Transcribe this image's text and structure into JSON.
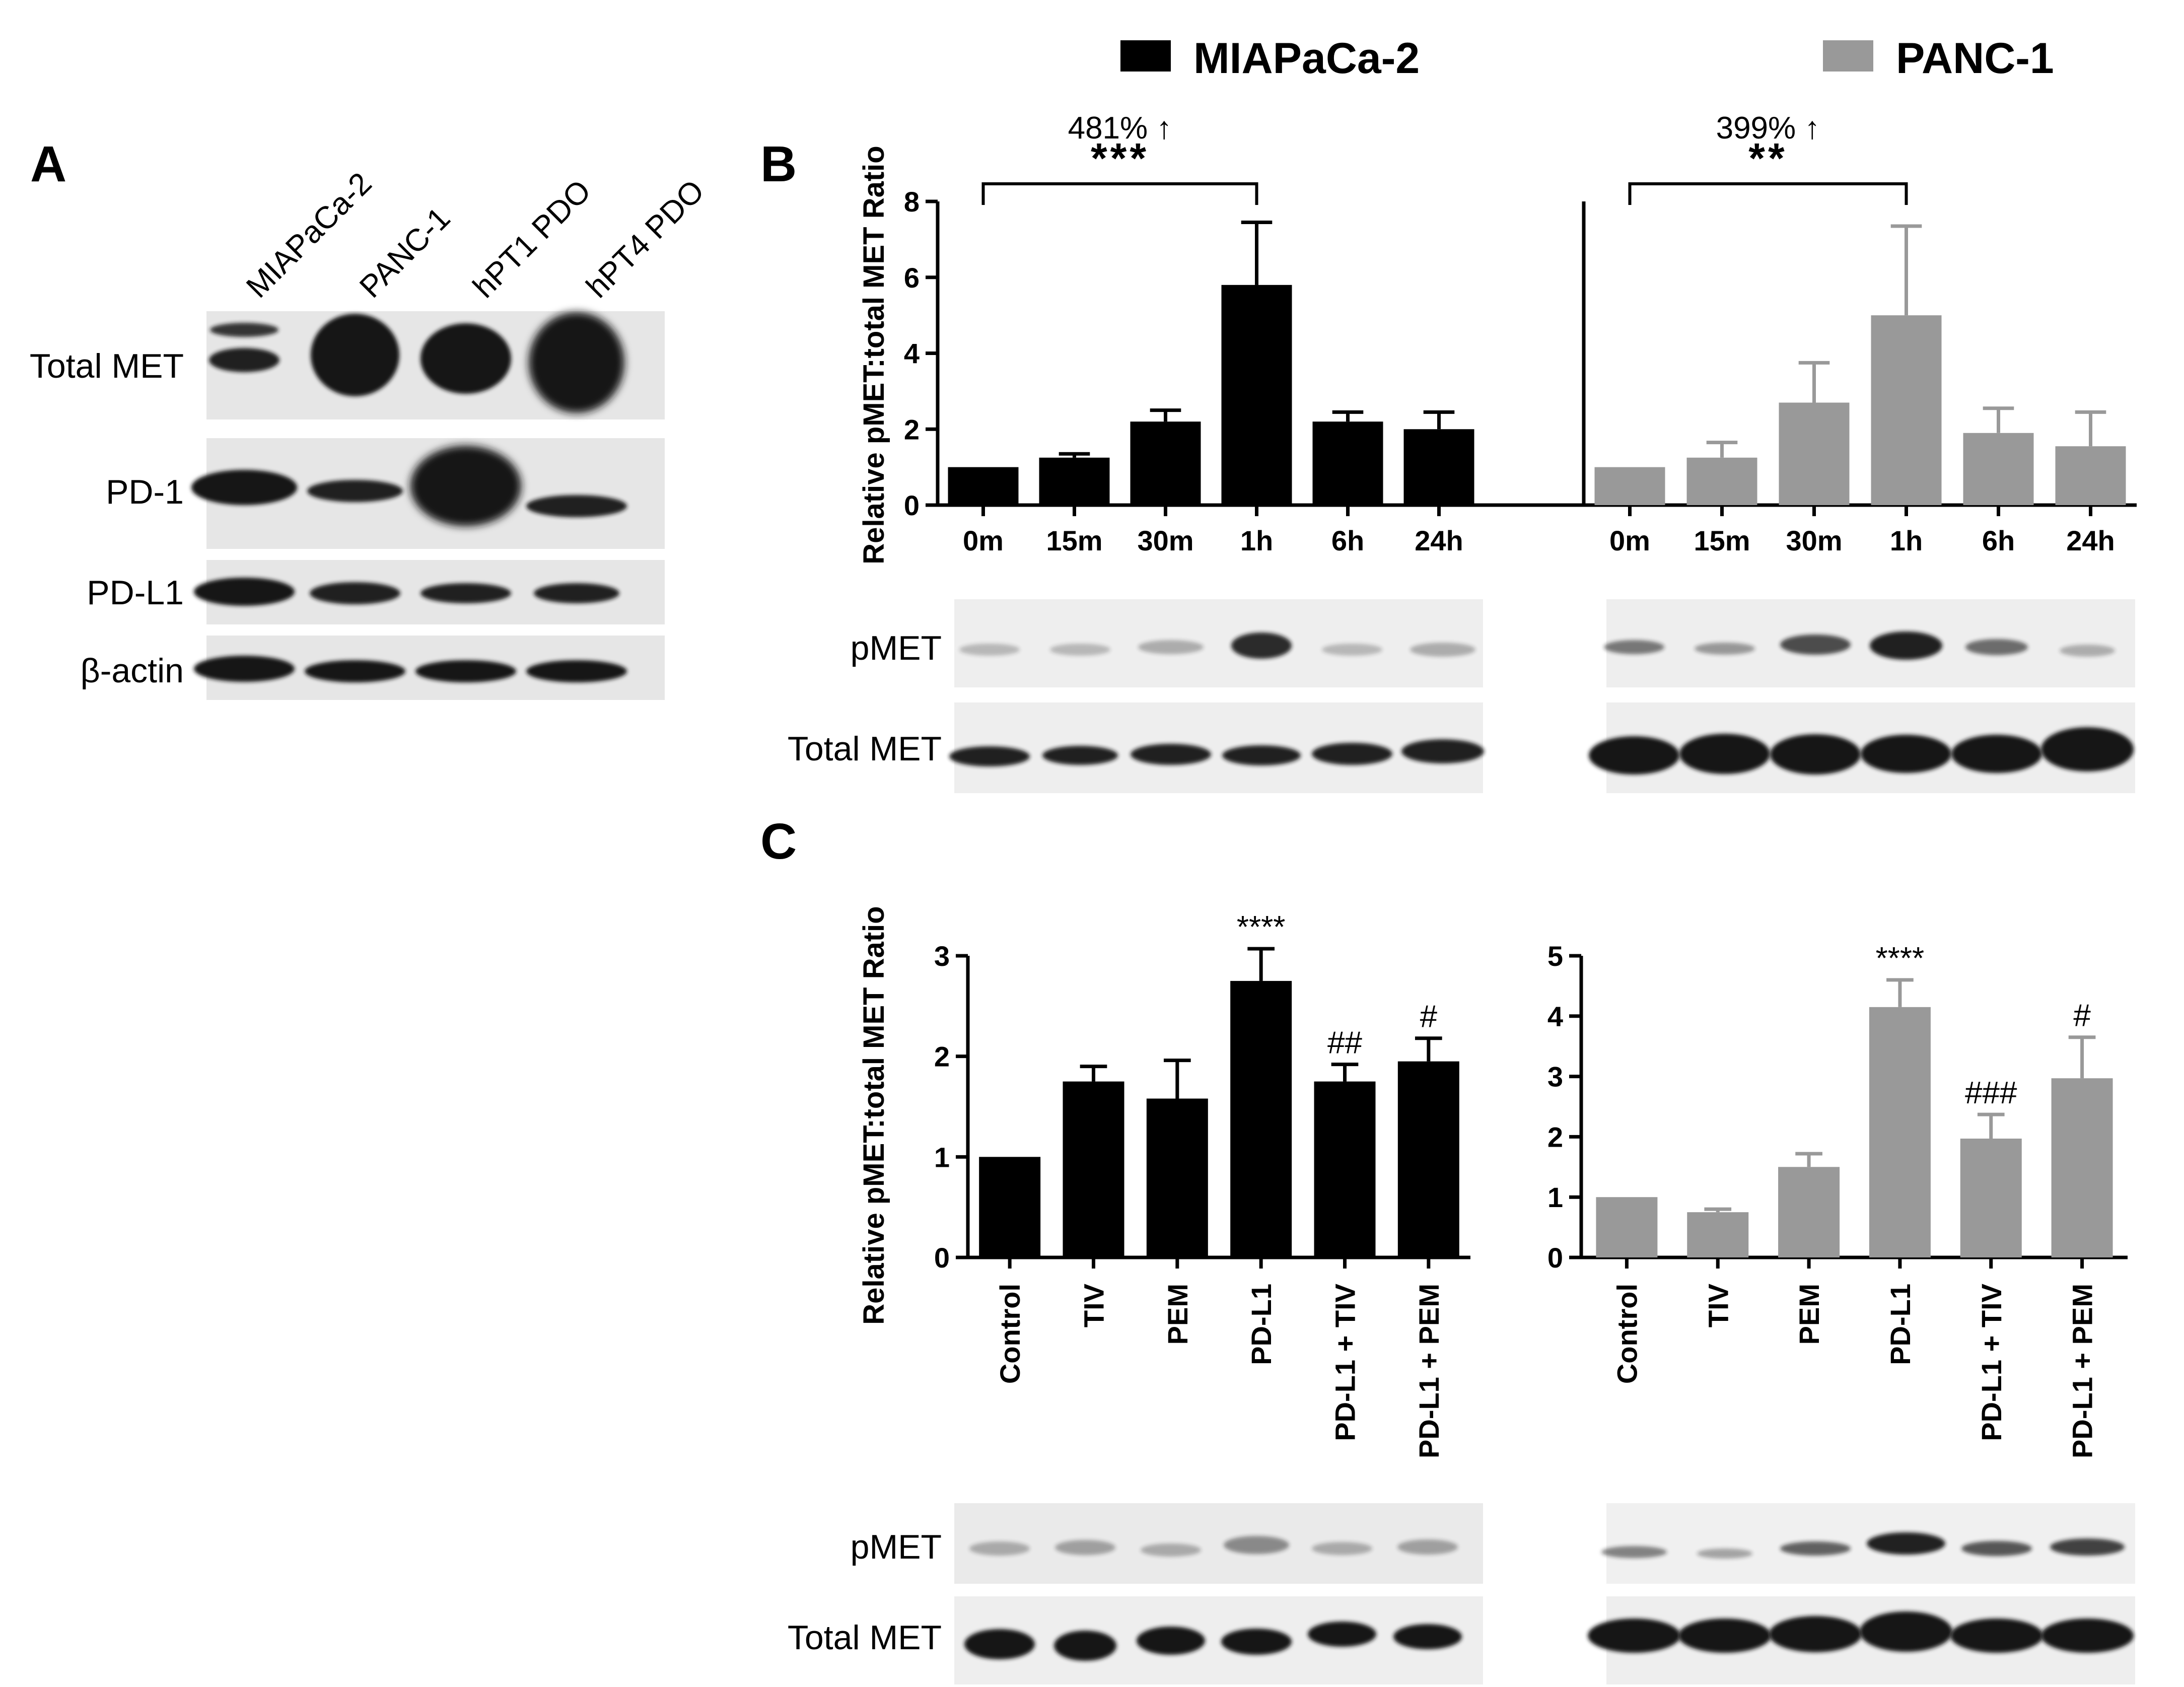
{
  "colors": {
    "miapaca": "#000000",
    "panc": "#999999",
    "blot_bg": "#e6e6e6",
    "band": "#141414"
  },
  "legend": [
    {
      "name": "MIAPaCa-2",
      "color": "#000000"
    },
    {
      "name": "PANC-1",
      "color": "#999999"
    }
  ],
  "panelA": {
    "letter": "A",
    "lanes": [
      "MIAPaCa-2",
      "PANC-1",
      "hPT1 PDO",
      "hPT4 PDO"
    ],
    "rows": [
      "Total MET",
      "PD-1",
      "PD-L1",
      "β-actin"
    ]
  },
  "panelB": {
    "letter": "B",
    "blot_rows": [
      "pMET",
      "Total MET"
    ]
  },
  "panelC": {
    "letter": "C",
    "blot_rows": [
      "pMET",
      "Total MET"
    ]
  },
  "chart_data": [
    {
      "type": "bar",
      "panel": "B",
      "series_name": "MIAPaCa-2",
      "categories": [
        "0m",
        "15m",
        "30m",
        "1h",
        "6h",
        "24h"
      ],
      "values": [
        1.0,
        1.25,
        2.2,
        5.8,
        2.2,
        2.0
      ],
      "errors": [
        0.0,
        0.1,
        0.3,
        1.65,
        0.25,
        0.45
      ],
      "ylabel": "Relative pMET:total MET Ratio",
      "ylim": [
        0,
        8
      ],
      "yticks": [
        0,
        2,
        4,
        6,
        8
      ],
      "bracket": {
        "from": "0m",
        "to": "1h",
        "stars": "***",
        "note": "481% ↑"
      }
    },
    {
      "type": "bar",
      "panel": "B",
      "series_name": "PANC-1",
      "categories": [
        "0m",
        "15m",
        "30m",
        "1h",
        "6h",
        "24h"
      ],
      "values": [
        1.0,
        1.25,
        2.7,
        5.0,
        1.9,
        1.55
      ],
      "errors": [
        0.0,
        0.4,
        1.05,
        2.35,
        0.65,
        0.9
      ],
      "ylim": [
        0,
        8
      ],
      "bracket": {
        "from": "0m",
        "to": "1h",
        "stars": "**",
        "note": "399% ↑"
      }
    },
    {
      "type": "bar",
      "panel": "C",
      "series_name": "MIAPaCa-2",
      "categories": [
        "Control",
        "TIV",
        "PEM",
        "PD-L1",
        "PD-L1 + TIV",
        "PD-L1 + PEM"
      ],
      "values": [
        1.0,
        1.75,
        1.58,
        2.75,
        1.75,
        1.95
      ],
      "errors": [
        0.0,
        0.15,
        0.38,
        0.32,
        0.17,
        0.23
      ],
      "sig": [
        "",
        "",
        "",
        "****",
        "##",
        "#"
      ],
      "ylabel": "Relative pMET:total MET Ratio",
      "ylim": [
        0,
        3
      ],
      "yticks": [
        0,
        1,
        2,
        3
      ]
    },
    {
      "type": "bar",
      "panel": "C",
      "series_name": "PANC-1",
      "categories": [
        "Control",
        "TIV",
        "PEM",
        "PD-L1",
        "PD-L1 + TIV",
        "PD-L1 + PEM"
      ],
      "values": [
        1.0,
        0.75,
        1.5,
        4.15,
        1.97,
        2.97
      ],
      "errors": [
        0.0,
        0.05,
        0.22,
        0.45,
        0.4,
        0.68
      ],
      "sig": [
        "",
        "",
        "",
        "****",
        "###",
        "#"
      ],
      "ylim": [
        0,
        5
      ],
      "yticks": [
        0,
        1,
        2,
        3,
        4,
        5
      ]
    }
  ]
}
